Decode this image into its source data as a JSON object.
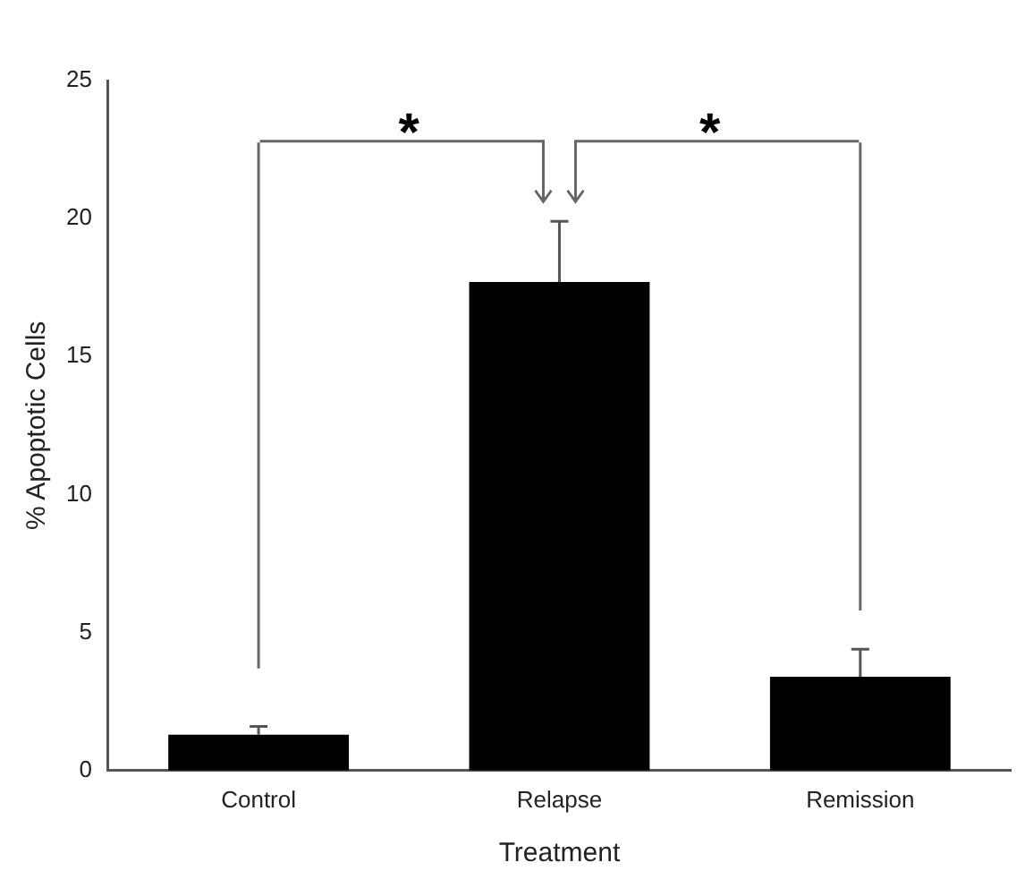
{
  "chart_data": {
    "type": "bar",
    "xlabel": "Treatment",
    "ylabel": "% Apoptotic Cells",
    "categories": [
      "Control",
      "Relapse",
      "Remission"
    ],
    "values": [
      1.3,
      17.7,
      3.4
    ],
    "errors": [
      [
        1.3,
        1.6
      ],
      [
        17.7,
        19.9
      ],
      [
        3.4,
        4.4
      ]
    ],
    "color": "#000000",
    "ylim": [
      0,
      25
    ],
    "yticks": [
      0,
      5,
      10,
      15,
      20,
      25
    ],
    "grid": false,
    "legend": false,
    "annotations": [
      "*",
      "*"
    ]
  }
}
